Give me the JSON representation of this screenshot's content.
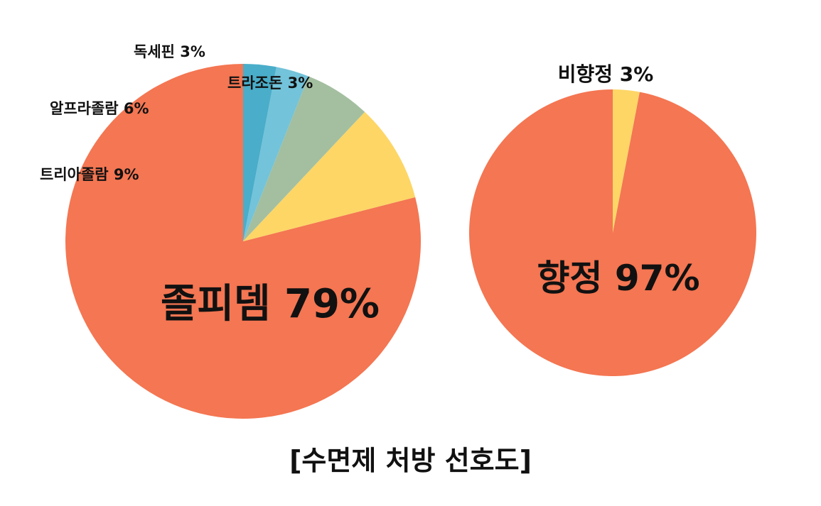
{
  "caption": "[수면제 처방 선호도]",
  "chart_data": [
    {
      "type": "pie",
      "slices": [
        {
          "label": "졸피뎀 79%",
          "value": 79,
          "color": "#F47652",
          "label_size": "large"
        },
        {
          "label": "트리아졸람 9%",
          "value": 9,
          "color": "#FDD666",
          "label_size": "small"
        },
        {
          "label": "알프라졸람 6%",
          "value": 6,
          "color": "#A3BFA0",
          "label_size": "small"
        },
        {
          "label": "독세핀 3%",
          "value": 3,
          "color": "#73C3DA",
          "label_size": "small"
        },
        {
          "label": "트라조돈 3%",
          "value": 3,
          "color": "#4AADC9",
          "label_size": "small"
        }
      ]
    },
    {
      "type": "pie",
      "slices": [
        {
          "label": "향정 97%",
          "value": 97,
          "color": "#F47652",
          "label_size": "large"
        },
        {
          "label": "비향정 3%",
          "value": 3,
          "color": "#FDD666",
          "label_size": "medium"
        }
      ]
    }
  ]
}
